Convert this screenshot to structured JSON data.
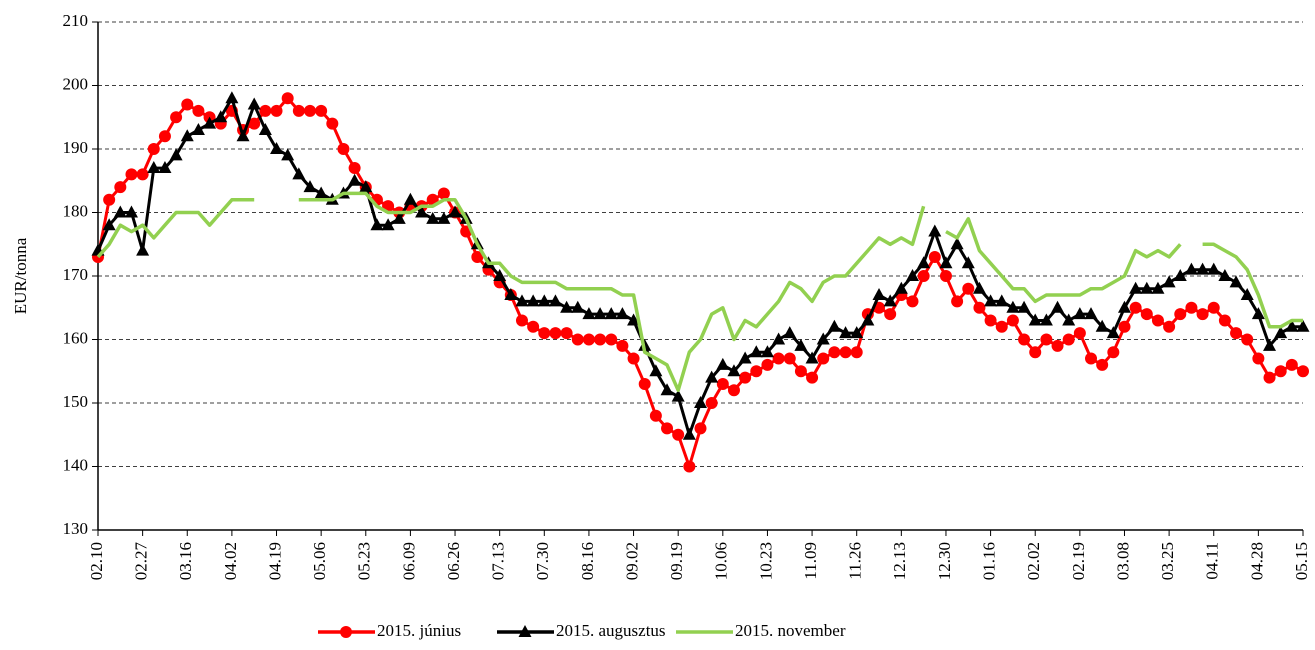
{
  "chart_data": {
    "type": "line",
    "ylabel": "EUR/tonna",
    "categories": [
      "02.10",
      null,
      null,
      null,
      "02.27",
      null,
      null,
      null,
      "03.16",
      null,
      null,
      null,
      "04.02",
      null,
      null,
      null,
      "04.19",
      null,
      null,
      null,
      "05.06",
      null,
      null,
      null,
      "05.23",
      null,
      null,
      null,
      "06.09",
      null,
      null,
      null,
      "06.26",
      null,
      null,
      null,
      "07.13",
      null,
      null,
      null,
      "07.30",
      null,
      null,
      null,
      "08.16",
      null,
      null,
      null,
      "09.02",
      null,
      null,
      null,
      "09.19",
      null,
      null,
      null,
      "10.06",
      null,
      null,
      null,
      "10.23",
      null,
      null,
      null,
      "11.09",
      null,
      null,
      null,
      "11.26",
      null,
      null,
      null,
      "12.13",
      null,
      null,
      null,
      "12.30",
      null,
      null,
      null,
      "01.16",
      null,
      null,
      null,
      "02.02",
      null,
      null,
      null,
      "02.19",
      null,
      null,
      null,
      "03.08",
      null,
      null,
      null,
      "03.25",
      null,
      null,
      null,
      "04.11",
      null,
      null,
      null,
      "04.28",
      null,
      null,
      null,
      "05.15"
    ],
    "series": [
      {
        "name": "2015. június",
        "color": "#ff0000",
        "marker": "circle",
        "values": [
          173,
          182,
          184,
          186,
          186,
          190,
          192,
          195,
          197,
          196,
          195,
          194,
          196,
          193,
          194,
          196,
          196,
          198,
          196,
          196,
          196,
          194,
          190,
          187,
          184,
          182,
          181,
          180,
          181,
          181,
          182,
          183,
          180,
          177,
          173,
          171,
          169,
          167,
          163,
          162,
          161,
          161,
          161,
          160,
          160,
          160,
          160,
          159,
          157,
          153,
          148,
          146,
          145,
          140,
          146,
          150,
          153,
          152,
          154,
          155,
          156,
          157,
          157,
          155,
          154,
          157,
          158,
          158,
          158,
          164,
          165,
          164,
          167,
          166,
          170,
          173,
          170,
          166,
          168,
          165,
          163,
          162,
          163,
          160,
          158,
          160,
          159,
          160,
          161,
          157,
          156,
          158,
          162,
          165,
          164,
          163,
          162,
          164,
          165,
          164,
          165,
          163,
          161,
          160,
          157,
          154,
          155,
          156,
          155
        ]
      },
      {
        "name": "2015. augusztus",
        "color": "#000000",
        "marker": "triangle",
        "values": [
          174,
          178,
          180,
          180,
          174,
          187,
          187,
          189,
          192,
          193,
          194,
          195,
          198,
          192,
          197,
          193,
          190,
          189,
          186,
          184,
          183,
          182,
          183,
          185,
          184,
          178,
          178,
          179,
          182,
          180,
          179,
          179,
          180,
          179,
          175,
          172,
          170,
          167,
          166,
          166,
          166,
          166,
          165,
          165,
          164,
          164,
          164,
          164,
          163,
          159,
          155,
          152,
          151,
          145,
          150,
          154,
          156,
          155,
          157,
          158,
          158,
          160,
          161,
          159,
          157,
          160,
          162,
          161,
          161,
          163,
          167,
          166,
          168,
          170,
          172,
          177,
          172,
          175,
          172,
          168,
          166,
          166,
          165,
          165,
          163,
          163,
          165,
          163,
          164,
          164,
          162,
          161,
          165,
          168,
          168,
          168,
          169,
          170,
          171,
          171,
          171,
          170,
          169,
          167,
          164,
          159,
          161,
          162,
          162
        ]
      },
      {
        "name": "2015. november",
        "color": "#92d050",
        "marker": "none",
        "values": [
          173,
          175,
          178,
          177,
          178,
          176,
          178,
          180,
          180,
          180,
          178,
          180,
          182,
          182,
          182,
          null,
          null,
          null,
          182,
          182,
          182,
          182,
          183,
          183,
          183,
          181,
          180,
          180,
          180,
          181,
          181,
          182,
          182,
          179,
          175,
          172,
          172,
          170,
          169,
          169,
          169,
          169,
          168,
          168,
          168,
          168,
          168,
          167,
          167,
          158,
          157,
          156,
          152,
          158,
          160,
          164,
          165,
          160,
          163,
          162,
          164,
          166,
          169,
          168,
          166,
          169,
          170,
          170,
          172,
          174,
          176,
          175,
          176,
          175,
          181,
          null,
          177,
          176,
          179,
          174,
          172,
          170,
          168,
          168,
          166,
          167,
          167,
          167,
          167,
          168,
          168,
          169,
          170,
          174,
          173,
          174,
          173,
          175,
          null,
          175,
          175,
          174,
          173,
          171,
          167,
          162,
          162,
          163,
          163
        ]
      }
    ],
    "ylim": [
      130,
      210
    ],
    "yticks": [
      130,
      140,
      150,
      160,
      170,
      180,
      190,
      200,
      210
    ],
    "grid": true,
    "legend": "bottom"
  }
}
